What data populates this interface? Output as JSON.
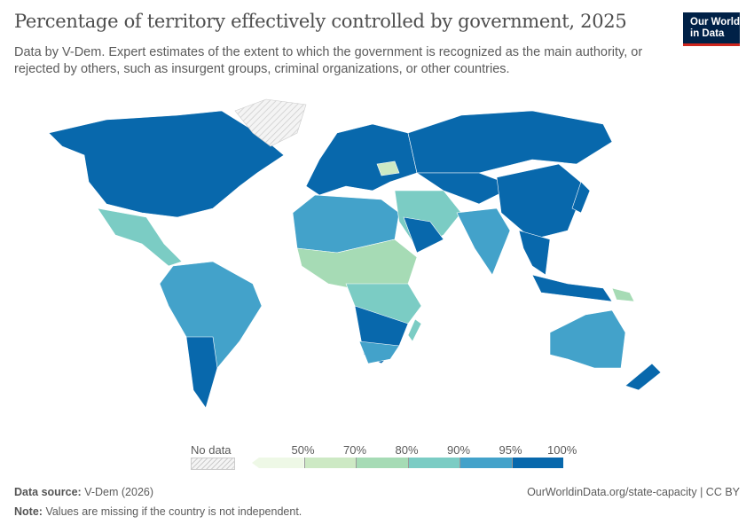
{
  "header": {
    "title": "Percentage of territory effectively controlled by government, 2025",
    "subtitle": "Data by V-Dem. Expert estimates of the extent to which the government is recognized as the main authority, or rejected by others, such as insurgent groups, criminal organizations, or other countries.",
    "logo": "Our World in Data"
  },
  "legend": {
    "no_data": "No data",
    "bins": [
      {
        "label": "",
        "color": "#eef8e6"
      },
      {
        "label": "50%",
        "color": "#cde9c4"
      },
      {
        "label": "70%",
        "color": "#a6dbb5"
      },
      {
        "label": "80%",
        "color": "#7bccc4"
      },
      {
        "label": "90%",
        "color": "#43a2ca"
      },
      {
        "label": "95%",
        "color": "#0868ac"
      }
    ],
    "end_label": "100%"
  },
  "footer": {
    "source_label": "Data source:",
    "source": "V-Dem (2026)",
    "link": "OurWorldinData.org/state-capacity | CC BY",
    "note_label": "Note:",
    "note": "Values are missing if the country is not independent."
  }
}
